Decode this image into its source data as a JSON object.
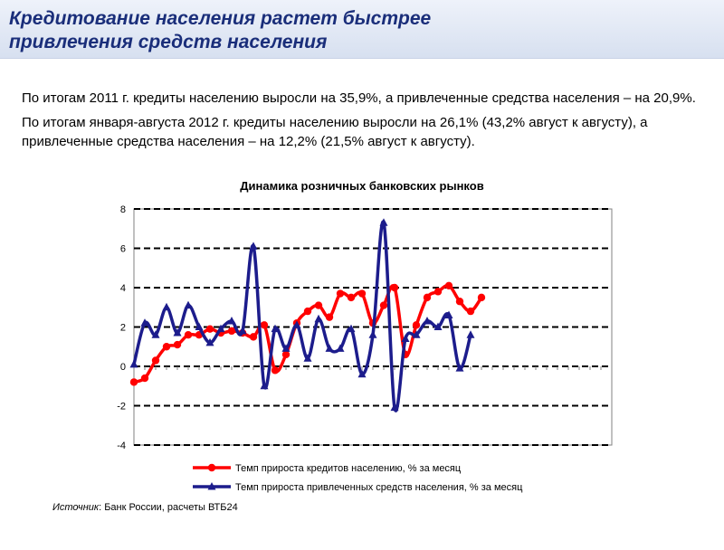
{
  "header": {
    "title_line1": "Кредитование населения растет быстрее",
    "title_line2": "привлечения средств населения"
  },
  "summary": {
    "p1": "По итогам 2011 г. кредиты населению выросли на 35,9%, а привлеченные средства населения – на 20,9%.",
    "p2": "По итогам января-августа 2012 г. кредиты населению выросли на 26,1% (43,2% август к августу), а привлеченные средства населения – на 12,2% (21,5% август к августу)."
  },
  "chart_data": {
    "type": "line",
    "title": "Динамика розничных банковских рынков",
    "ylim": [
      -4,
      8
    ],
    "yticks": [
      -4,
      -2,
      0,
      2,
      4,
      6,
      8
    ],
    "grid": true,
    "legend_position": "bottom",
    "x_count": 45,
    "series": [
      {
        "name": "Темп прироста кредитов населению, % за месяц",
        "color": "#ff0000",
        "values": [
          -0.8,
          -0.6,
          0.3,
          1.0,
          1.1,
          1.6,
          1.6,
          1.9,
          1.7,
          1.8,
          1.7,
          1.5,
          2.1,
          -0.2,
          0.6,
          2.2,
          2.8,
          3.1,
          2.5,
          3.7,
          3.5,
          3.7,
          2.2,
          3.1,
          4.0,
          0.6,
          2.1,
          3.5,
          3.8,
          4.1,
          3.3,
          2.8,
          3.5
        ]
      },
      {
        "name": "Темп прироста привлеченных средств населения, % за месяц",
        "color": "#1c1c8c",
        "values": [
          0.1,
          2.2,
          1.6,
          3.0,
          1.7,
          3.1,
          2.0,
          1.2,
          1.9,
          2.3,
          1.8,
          6.1,
          -1.0,
          1.9,
          0.9,
          2.1,
          0.4,
          2.4,
          0.9,
          0.9,
          1.9,
          -0.4,
          1.6,
          7.3,
          -2.1,
          1.4,
          1.6,
          2.3,
          2.0,
          2.6,
          -0.1,
          1.6
        ]
      }
    ]
  },
  "source": {
    "label": "Источник",
    "text": ": Банк России, расчеты ВТБ24"
  }
}
